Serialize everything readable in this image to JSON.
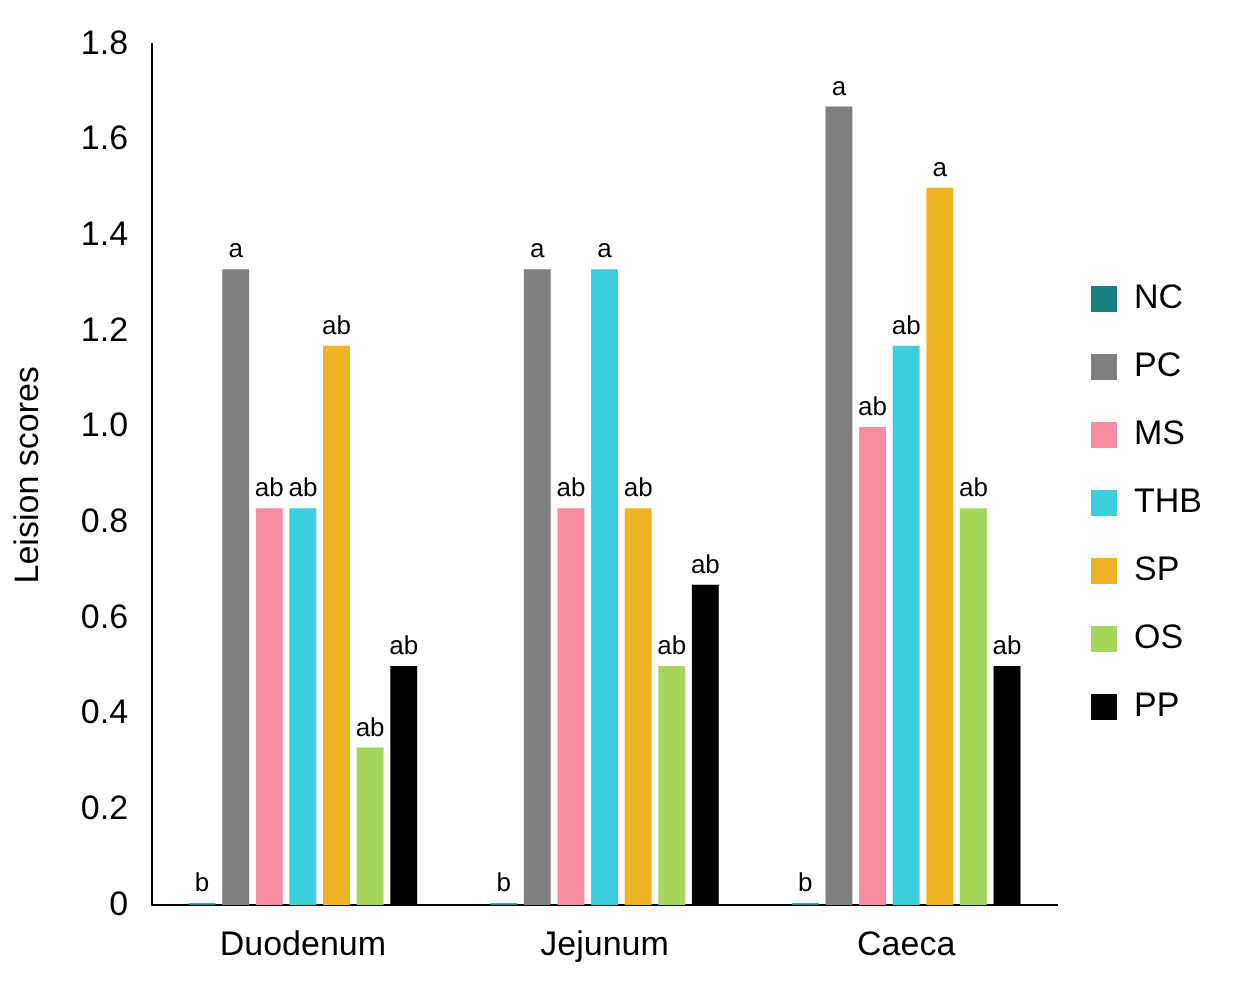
{
  "chart_data": {
    "type": "bar",
    "ylabel": "Leision scores",
    "categories": [
      "Duodenum",
      "Jejunum",
      "Caeca"
    ],
    "series": [
      {
        "name": "NC",
        "color": "#1a7f7f",
        "values": [
          0,
          0,
          0
        ],
        "value_labels": [
          "b",
          "b",
          "b"
        ]
      },
      {
        "name": "PC",
        "color": "#7f7f7f",
        "values": [
          1.33,
          1.33,
          1.67
        ],
        "value_labels": [
          "a",
          "a",
          "a"
        ]
      },
      {
        "name": "MS",
        "color": "#f78ca2",
        "values": [
          0.83,
          0.83,
          1.0
        ],
        "value_labels": [
          "ab",
          "ab",
          "ab"
        ]
      },
      {
        "name": "THB",
        "color": "#3dcfdd",
        "values": [
          0.83,
          1.33,
          1.17
        ],
        "value_labels": [
          "ab",
          "a",
          "ab"
        ]
      },
      {
        "name": "SP",
        "color": "#f0b323",
        "values": [
          1.17,
          0.83,
          1.5
        ],
        "value_labels": [
          "ab",
          "ab",
          "a"
        ]
      },
      {
        "name": "OS",
        "color": "#a6d65b",
        "values": [
          0.33,
          0.5,
          0.83
        ],
        "value_labels": [
          "ab",
          "ab",
          "ab"
        ]
      },
      {
        "name": "PP",
        "color": "#000000",
        "values": [
          0.5,
          0.67,
          0.5
        ],
        "value_labels": [
          "ab",
          "ab",
          "ab"
        ]
      }
    ],
    "ylim": [
      0,
      1.8
    ],
    "yticks": [
      0,
      0.2,
      0.4,
      0.6,
      0.8,
      {
        "value": 1,
        "label": "1.0"
      },
      1.2,
      1.4,
      1.6,
      1.8
    ],
    "grid": false,
    "legend": "right"
  }
}
